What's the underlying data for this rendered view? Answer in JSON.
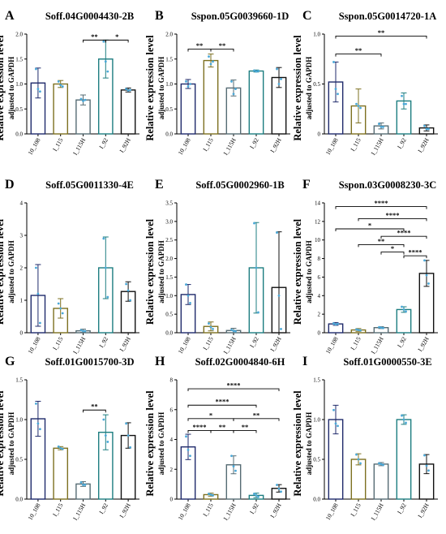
{
  "common": {
    "ylabel_main": "Relative expression level",
    "ylabel_sub": "adjusted to GAPDH",
    "categories": [
      "10_108",
      "I_115",
      "I_115H",
      "I_92",
      "I_92H"
    ],
    "colors": {
      "10_108": "#1f2a6b",
      "I_115": "#7d7020",
      "I_115H": "#556b73",
      "I_92": "#1c7d80",
      "I_92H": "#111111"
    },
    "point_color": "#4aa8d8"
  },
  "chart_data": [
    {
      "letter": "A",
      "title": "Soff.04G0004430-2B",
      "type": "bar",
      "ylim": [
        0,
        2.0
      ],
      "yticks": [
        0,
        0.5,
        1.0,
        1.5,
        2.0
      ],
      "ytick_labels": [
        "0.0",
        "0.5",
        "1.0",
        "1.5",
        "2.0"
      ],
      "values": [
        1.02,
        1.0,
        0.68,
        1.5,
        0.88
      ],
      "errors": [
        0.3,
        0.07,
        0.1,
        0.38,
        0.04
      ],
      "points": [
        [
          1.3,
          0.9,
          0.85
        ],
        [
          1.05,
          0.98,
          0.95
        ],
        [
          0.7,
          0.66,
          0.68
        ],
        [
          1.85,
          1.45,
          1.25
        ],
        [
          0.9,
          0.87,
          0.88
        ]
      ],
      "sig": [
        {
          "a": 2,
          "b": 3,
          "label": "**",
          "y": 1.88
        },
        {
          "a": 3,
          "b": 4,
          "label": "*",
          "y": 1.88
        }
      ]
    },
    {
      "letter": "B",
      "title": "Sspon.05G0039660-1D",
      "type": "bar",
      "ylim": [
        0,
        2.0
      ],
      "yticks": [
        0,
        0.5,
        1.0,
        1.5,
        2.0
      ],
      "ytick_labels": [
        "0.0",
        "0.5",
        "1.0",
        "1.5",
        "2.0"
      ],
      "values": [
        1.0,
        1.47,
        0.92,
        1.26,
        1.13
      ],
      "errors": [
        0.09,
        0.13,
        0.16,
        0.02,
        0.2
      ],
      "points": [
        [
          1.05,
          0.95,
          1.0
        ],
        [
          1.55,
          1.4,
          1.45
        ],
        [
          1.05,
          0.8,
          0.9
        ],
        [
          1.27,
          1.25,
          1.26
        ],
        [
          1.3,
          1.0,
          1.1
        ]
      ],
      "sig": [
        {
          "a": 0,
          "b": 1,
          "label": "**",
          "y": 1.7
        },
        {
          "a": 1,
          "b": 2,
          "label": "**",
          "y": 1.7
        }
      ]
    },
    {
      "letter": "C",
      "title": "Sspon.05G0014720-1A",
      "type": "bar",
      "ylim": [
        0,
        1.0
      ],
      "yticks": [
        0,
        0.5,
        1.0
      ],
      "ytick_labels": [
        "0",
        "0.5",
        "1.0"
      ],
      "values": [
        0.52,
        0.28,
        0.08,
        0.33,
        0.06
      ],
      "errors": [
        0.2,
        0.17,
        0.03,
        0.08,
        0.03
      ],
      "points": [
        [
          0.72,
          0.45,
          0.4
        ],
        [
          0.3,
          0.28,
          0.26
        ],
        [
          0.1,
          0.07,
          0.07
        ],
        [
          0.38,
          0.3,
          0.3
        ],
        [
          0.08,
          0.05,
          0.05
        ]
      ],
      "sig": [
        {
          "a": 0,
          "b": 2,
          "label": "**",
          "y": 0.8
        },
        {
          "a": 0,
          "b": 4,
          "label": "**",
          "y": 0.98
        }
      ]
    },
    {
      "letter": "D",
      "title": "Soff.05G0011330-4E",
      "type": "bar",
      "ylim": [
        0,
        4
      ],
      "yticks": [
        0,
        1,
        2,
        3,
        4
      ],
      "ytick_labels": [
        "0",
        "1",
        "2",
        "3",
        "4"
      ],
      "values": [
        1.15,
        0.75,
        0.06,
        2.0,
        1.27
      ],
      "errors": [
        0.95,
        0.3,
        0.05,
        0.95,
        0.3
      ],
      "points": [
        [
          2.0,
          1.2,
          0.3
        ],
        [
          0.9,
          0.75,
          0.6
        ],
        [
          0.08,
          0.05,
          0.05
        ],
        [
          2.9,
          2.0,
          1.1
        ],
        [
          1.5,
          1.3,
          1.0
        ]
      ],
      "sig": []
    },
    {
      "letter": "E",
      "title": "Soff.05G0002960-1B",
      "type": "bar",
      "ylim": [
        0,
        3.5
      ],
      "yticks": [
        0,
        0.5,
        1.0,
        1.5,
        2.0,
        2.5,
        3.0,
        3.5
      ],
      "ytick_labels": [
        "0.0",
        "0.5",
        "1.0",
        "1.5",
        "2.0",
        "2.5",
        "3.0",
        "3.5"
      ],
      "values": [
        1.03,
        0.17,
        0.06,
        1.75,
        1.22
      ],
      "errors": [
        0.27,
        0.12,
        0.06,
        1.22,
        1.5
      ],
      "points": [
        [
          1.3,
          1.0,
          0.8
        ],
        [
          0.25,
          0.15,
          0.1
        ],
        [
          0.08,
          0.05,
          0.04
        ],
        [
          2.95,
          1.75,
          0.55
        ],
        [
          2.7,
          1.0,
          0.1
        ]
      ],
      "sig": []
    },
    {
      "letter": "F",
      "title": "Sspon.03G0008230-3C",
      "type": "bar",
      "ylim": [
        0,
        14
      ],
      "yticks": [
        0,
        2,
        4,
        6,
        8,
        10,
        12,
        14
      ],
      "ytick_labels": [
        "0",
        "2",
        "4",
        "6",
        "8",
        "10",
        "12",
        "14"
      ],
      "values": [
        0.95,
        0.3,
        0.55,
        2.5,
        6.4
      ],
      "errors": [
        0.15,
        0.15,
        0.1,
        0.3,
        1.4
      ],
      "points": [
        [
          1.0,
          0.9,
          0.95
        ],
        [
          0.35,
          0.3,
          0.25
        ],
        [
          0.6,
          0.55,
          0.5
        ],
        [
          2.8,
          2.5,
          2.3
        ],
        [
          7.8,
          6.2,
          5.3
        ]
      ],
      "sig": [
        {
          "a": 3,
          "b": 4,
          "label": "****",
          "y": 8.3
        },
        {
          "a": 2,
          "b": 3,
          "label": "*",
          "y": 8.7
        },
        {
          "a": 1,
          "b": 3,
          "label": "**",
          "y": 9.5
        },
        {
          "a": 2,
          "b": 4,
          "label": "****",
          "y": 10.4
        },
        {
          "a": 0,
          "b": 3,
          "label": "*",
          "y": 11.2
        },
        {
          "a": 1,
          "b": 4,
          "label": "****",
          "y": 12.3
        },
        {
          "a": 0,
          "b": 4,
          "label": "****",
          "y": 13.6
        }
      ]
    },
    {
      "letter": "G",
      "title": "Soff.01G0015700-3D",
      "type": "bar",
      "ylim": [
        0,
        1.5
      ],
      "yticks": [
        0,
        0.5,
        1.0,
        1.5
      ],
      "ytick_labels": [
        "0.0",
        "0.5",
        "1.0",
        "1.5"
      ],
      "values": [
        1.01,
        0.64,
        0.19,
        0.84,
        0.8
      ],
      "errors": [
        0.22,
        0.02,
        0.03,
        0.22,
        0.16
      ],
      "points": [
        [
          1.2,
          0.95,
          0.88
        ],
        [
          0.66,
          0.64,
          0.63
        ],
        [
          0.21,
          0.18,
          0.18
        ],
        [
          1.0,
          0.8,
          0.72
        ],
        [
          0.95,
          0.8,
          0.65
        ]
      ],
      "sig": [
        {
          "a": 2,
          "b": 3,
          "label": "**",
          "y": 1.12
        }
      ]
    },
    {
      "letter": "H",
      "title": "Soff.02G0004840-6H",
      "type": "bar",
      "ylim": [
        0,
        8
      ],
      "yticks": [
        0,
        2,
        4,
        6,
        8
      ],
      "ytick_labels": [
        "0",
        "2",
        "4",
        "6",
        "8"
      ],
      "values": [
        3.5,
        0.3,
        2.3,
        0.25,
        0.72
      ],
      "errors": [
        0.85,
        0.1,
        0.6,
        0.15,
        0.25
      ],
      "points": [
        [
          4.2,
          3.3,
          2.9
        ],
        [
          0.35,
          0.3,
          0.25
        ],
        [
          2.9,
          2.2,
          1.9
        ],
        [
          0.35,
          0.25,
          0.15
        ],
        [
          0.95,
          0.7,
          0.5
        ]
      ],
      "sig": [
        {
          "a": 0,
          "b": 1,
          "label": "****",
          "y": 4.6
        },
        {
          "a": 1,
          "b": 2,
          "label": "**",
          "y": 4.6
        },
        {
          "a": 2,
          "b": 3,
          "label": "**",
          "y": 4.6
        },
        {
          "a": 0,
          "b": 2,
          "label": "*",
          "y": 5.4
        },
        {
          "a": 2,
          "b": 4,
          "label": "**",
          "y": 5.4
        },
        {
          "a": 0,
          "b": 3,
          "label": "****",
          "y": 6.3
        },
        {
          "a": 0,
          "b": 4,
          "label": "****",
          "y": 7.4
        }
      ]
    },
    {
      "letter": "I",
      "title": "Soff.01G0000550-3E",
      "type": "bar",
      "ylim": [
        0,
        1.5
      ],
      "yticks": [
        0,
        0.5,
        1.0,
        1.5
      ],
      "ytick_labels": [
        "0.0",
        "0.5",
        "1.0",
        "1.5"
      ],
      "values": [
        1.0,
        0.5,
        0.44,
        1.0,
        0.44
      ],
      "errors": [
        0.18,
        0.07,
        0.02,
        0.06,
        0.12
      ],
      "points": [
        [
          1.12,
          0.95,
          0.92
        ],
        [
          0.56,
          0.5,
          0.45
        ],
        [
          0.45,
          0.44,
          0.43
        ],
        [
          1.05,
          1.0,
          0.96
        ],
        [
          0.55,
          0.42,
          0.36
        ]
      ],
      "sig": []
    }
  ]
}
